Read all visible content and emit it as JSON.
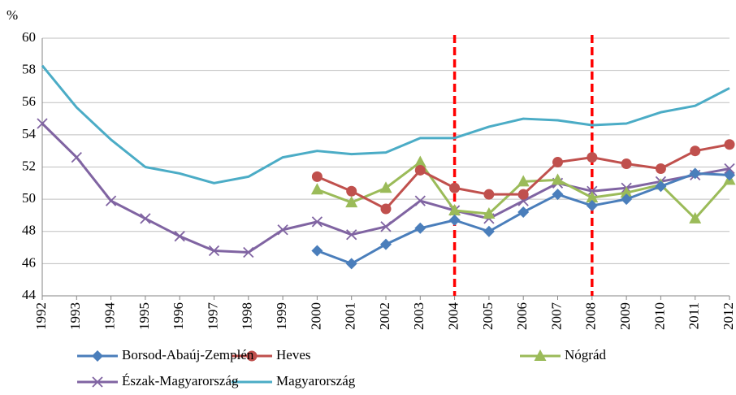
{
  "chart_data": {
    "type": "line",
    "y_label": "%",
    "categories": [
      "1992",
      "1993",
      "1994",
      "1995",
      "1996",
      "1997",
      "1998",
      "1999",
      "2000",
      "2001",
      "2002",
      "2003",
      "2004",
      "2005",
      "2006",
      "2007",
      "2008",
      "2009",
      "2010",
      "2011",
      "2012"
    ],
    "ylim": [
      44,
      60
    ],
    "yticks": [
      44,
      46,
      48,
      50,
      52,
      54,
      56,
      58,
      60
    ],
    "grid": true,
    "vlines": [
      2004,
      2008
    ],
    "vline_color": "#ff0000",
    "series": [
      {
        "name": "Magyarország",
        "color": "#4bacc6",
        "marker": "none",
        "values": [
          58.3,
          55.7,
          53.7,
          52.0,
          51.6,
          51.0,
          51.4,
          52.6,
          53.0,
          52.8,
          52.9,
          53.8,
          53.8,
          54.5,
          55.0,
          54.9,
          54.6,
          54.7,
          55.4,
          55.8,
          56.9
        ]
      },
      {
        "name": "Észak-Magyarország",
        "color": "#8064a2",
        "marker": "x",
        "values": [
          54.7,
          52.6,
          49.9,
          48.8,
          47.7,
          46.8,
          46.7,
          48.1,
          48.6,
          47.8,
          48.3,
          49.9,
          49.3,
          48.8,
          49.9,
          51.0,
          50.5,
          50.7,
          51.1,
          51.5,
          51.9
        ]
      },
      {
        "name": "Nógrád",
        "color": "#9bbb59",
        "marker": "triangle",
        "values": [
          null,
          null,
          null,
          null,
          null,
          null,
          null,
          null,
          50.6,
          49.8,
          50.7,
          52.3,
          49.3,
          49.1,
          51.1,
          51.2,
          50.1,
          50.4,
          50.9,
          48.8,
          51.2
        ]
      },
      {
        "name": "Heves",
        "color": "#c0504d",
        "marker": "circle",
        "values": [
          null,
          null,
          null,
          null,
          null,
          null,
          null,
          null,
          51.4,
          50.5,
          49.4,
          51.8,
          50.7,
          50.3,
          50.3,
          52.3,
          52.6,
          52.2,
          51.9,
          53.0,
          53.4
        ]
      },
      {
        "name": "Borsod-Abaúj-Zemplén",
        "color": "#4a7ebb",
        "marker": "diamond",
        "values": [
          null,
          null,
          null,
          null,
          null,
          null,
          null,
          null,
          46.8,
          46.0,
          47.2,
          48.2,
          48.7,
          48.0,
          49.2,
          50.3,
          49.6,
          50.0,
          50.8,
          51.6,
          51.5
        ]
      }
    ]
  }
}
